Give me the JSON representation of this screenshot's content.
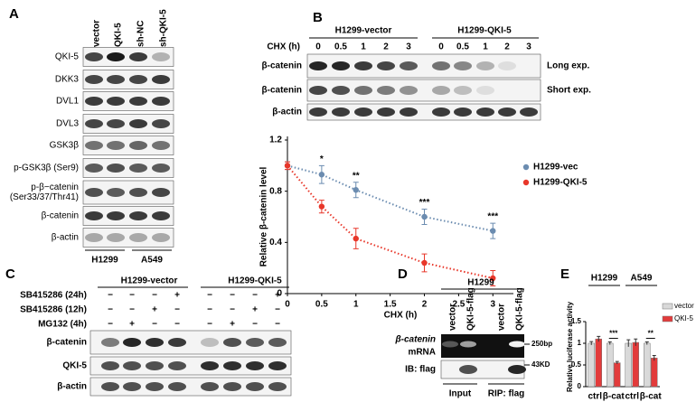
{
  "panels": {
    "A": {
      "label": "A",
      "lanes": [
        "vector",
        "QKI-5",
        "sh-NC",
        "sh-QKI-5"
      ],
      "rows": [
        [
          "QKI-5"
        ],
        [
          "DKK3"
        ],
        [
          "DVL1"
        ],
        [
          "DVL3"
        ],
        [
          "GSK3β"
        ],
        [
          "p-GSK3β (Ser9)"
        ],
        [
          "p-β−catenin",
          "(Ser33/37/Thr41)"
        ],
        [
          "β-catenin"
        ],
        [
          "β-actin"
        ]
      ],
      "groups": [
        "H1299",
        "A549"
      ]
    },
    "B": {
      "label": "B",
      "groups": [
        "H1299-vector",
        "H1299-QKI-5"
      ],
      "treatment": "CHX (h)",
      "lanes": [
        "0",
        "0.5",
        "1",
        "2",
        "3",
        "0",
        "0.5",
        "1",
        "2",
        "3"
      ],
      "rows": [
        "β-catenin",
        "β-catenin",
        "β-actin"
      ],
      "exposures": [
        "Long exp.",
        "Short exp."
      ]
    },
    "C": {
      "label": "C",
      "groups": [
        "H1299-vector",
        "H1299-QKI-5"
      ],
      "treatments": [
        {
          "name": "SB415286 (24h)",
          "lanes": [
            "−",
            "−",
            "−",
            "+",
            "−",
            "−",
            "−",
            "+"
          ]
        },
        {
          "name": "SB415286 (12h)",
          "lanes": [
            "−",
            "−",
            "+",
            "−",
            "−",
            "−",
            "+",
            "−"
          ]
        },
        {
          "name": "MG132 (4h)",
          "lanes": [
            "−",
            "+",
            "−",
            "−",
            "−",
            "+",
            "−",
            "−"
          ]
        }
      ],
      "rows": [
        "β-catenin",
        "QKI-5",
        "β-actin"
      ]
    },
    "D": {
      "label": "D",
      "cell_line": "H1299",
      "lanes": [
        "vector",
        "QKI-5-flag",
        "vector",
        "QKI-5-flag"
      ],
      "rows": [
        [
          "β-catenin",
          "mRNA"
        ],
        [
          "IB: flag"
        ]
      ],
      "markers": [
        "250bp",
        "43KD"
      ],
      "groups": [
        "Input",
        "RIP: flag"
      ]
    },
    "E": {
      "label": "E"
    }
  },
  "chart_data": [
    {
      "type": "line",
      "ylabel": "Relative β-catenin level",
      "xlabel": "CHX (h)",
      "x": [
        0,
        0.5,
        1,
        2,
        3
      ],
      "xlim": [
        0,
        3.3
      ],
      "ylim": [
        0,
        1.2
      ],
      "xticks": [
        0,
        0.5,
        1,
        1.5,
        2,
        2.5,
        3
      ],
      "yticks": [
        0,
        0.4,
        0.8,
        1.2
      ],
      "series": [
        {
          "name": "H1299-vec",
          "color": "#6b8cb0",
          "values": [
            1,
            0.93,
            0.81,
            0.6,
            0.49
          ],
          "errors": [
            0.03,
            0.07,
            0.06,
            0.06,
            0.06
          ]
        },
        {
          "name": "H1299-QKI-5",
          "color": "#e8372a",
          "values": [
            1,
            0.68,
            0.43,
            0.24,
            0.12
          ],
          "errors": [
            0.03,
            0.05,
            0.08,
            0.07,
            0.06
          ]
        }
      ],
      "significance": [
        null,
        "*",
        "**",
        "***",
        "***"
      ],
      "legend": "upper right"
    },
    {
      "type": "bar",
      "ylabel": "Relative luciferase activity",
      "groups": [
        "H1299",
        "A549"
      ],
      "categories": [
        "ctrl",
        "β-cat",
        "ctrl",
        "β-cat"
      ],
      "ylim": [
        0,
        1.5
      ],
      "yticks": [
        0,
        0.5,
        1,
        1.5
      ],
      "series": [
        {
          "name": "vector",
          "color": "#d9d9d9",
          "values": [
            1,
            1,
            1,
            1
          ],
          "errors": [
            0.04,
            0.03,
            0.08,
            0.03
          ]
        },
        {
          "name": "QKI-5",
          "color": "#e23b3b",
          "values": [
            1.1,
            0.55,
            1.02,
            0.66
          ],
          "errors": [
            0.06,
            0.03,
            0.08,
            0.06
          ]
        }
      ],
      "significance": [
        null,
        "***",
        null,
        "**"
      ],
      "legend": "right"
    }
  ]
}
